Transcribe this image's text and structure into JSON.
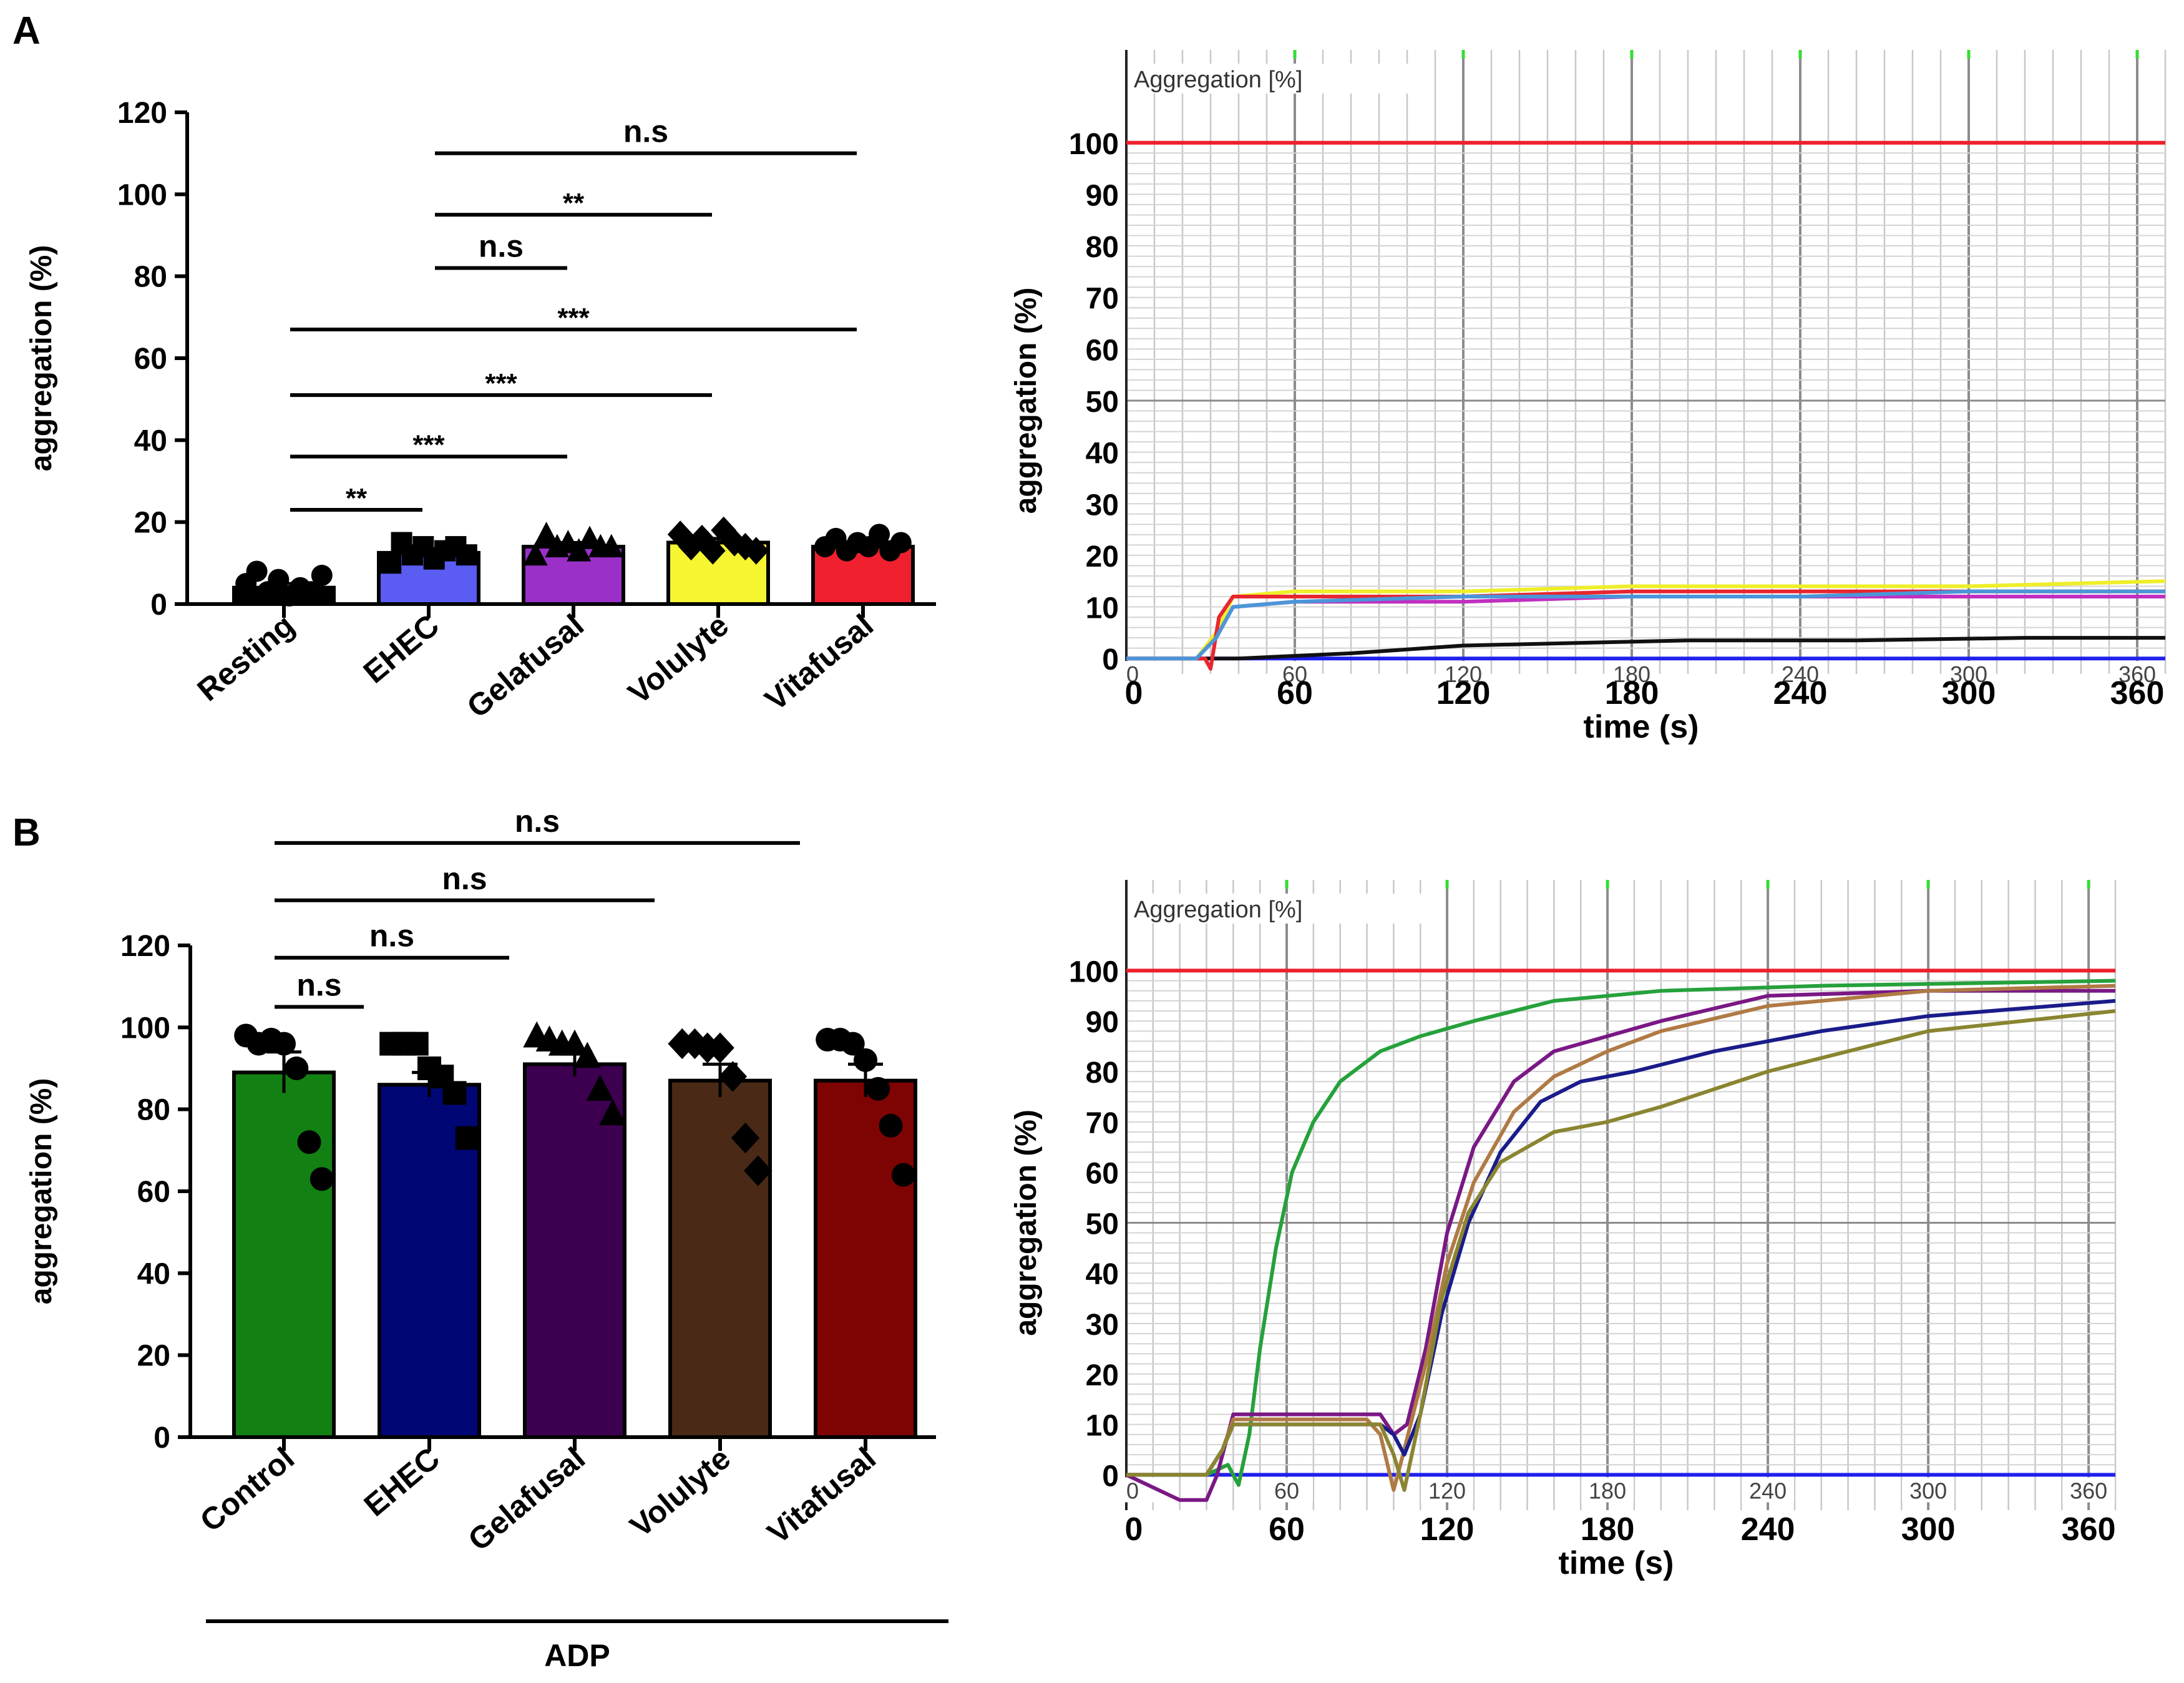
{
  "figure": {
    "panel_a_label": "A",
    "panel_b_label": "B",
    "adp_label": "ADP"
  },
  "colors": {
    "resting": "#000000",
    "ehec_a": "#5a5cf2",
    "gelafusal_a": "#9b30c8",
    "volulyte_a": "#f5f531",
    "vitafusal_a": "#f0202f",
    "control_b": "#138013",
    "ehec_b": "#010675",
    "gelafusal_b": "#3d0050",
    "volulyte_b": "#4a2a17",
    "vitafusal_b": "#7e0404",
    "trace_limit": "#ee1f2c",
    "trace_baseline": "#2020ee",
    "trace_grid_green": "#33dd33"
  },
  "chart_data": [
    {
      "id": "A-bar",
      "type": "bar",
      "ylabel": "aggregation (%)",
      "ylim": [
        0,
        120
      ],
      "yticks": [
        "0",
        "20",
        "40",
        "60",
        "80",
        "100",
        "120"
      ],
      "categories": [
        "Resting",
        "EHEC",
        "Gelafusal",
        "Volulyte",
        "Vitafusal"
      ],
      "values": [
        4,
        12.5,
        14,
        15,
        14
      ],
      "sem": [
        1,
        1,
        1,
        1,
        0.8
      ],
      "markers": [
        "circle",
        "square",
        "triangle",
        "diamond",
        "circle"
      ],
      "points": [
        [
          5,
          8,
          3,
          6,
          2,
          4,
          3,
          7
        ],
        [
          10,
          15,
          12,
          14,
          11,
          13,
          14,
          12
        ],
        [
          12,
          17,
          14,
          15,
          13,
          16,
          14,
          14
        ],
        [
          17,
          14,
          16,
          13,
          18,
          15,
          14,
          13
        ],
        [
          14,
          16,
          13,
          15,
          14,
          17,
          13,
          15
        ]
      ],
      "comparisons": [
        {
          "from": 1,
          "to": 4,
          "label": "n.s",
          "level": 110
        },
        {
          "from": 1,
          "to": 3,
          "label": "**",
          "level": 95
        },
        {
          "from": 1,
          "to": 2,
          "label": "n.s",
          "level": 82
        },
        {
          "from": 0,
          "to": 4,
          "label": "***",
          "level": 67
        },
        {
          "from": 0,
          "to": 3,
          "label": "***",
          "level": 51
        },
        {
          "from": 0,
          "to": 2,
          "label": "***",
          "level": 36
        },
        {
          "from": 0,
          "to": 1,
          "label": "**",
          "level": 23
        }
      ]
    },
    {
      "id": "A-trace",
      "type": "line",
      "inner_title": "Aggregation [%]",
      "ylabel": "aggregation (%)",
      "xlabel": "time (s)",
      "xlim": [
        0,
        370
      ],
      "ylim": [
        -3,
        118
      ],
      "yticks": [
        "0",
        "10",
        "20",
        "30",
        "40",
        "50",
        "60",
        "70",
        "80",
        "90",
        "100"
      ],
      "xticks": [
        "0",
        "60",
        "120",
        "180",
        "240",
        "300",
        "360"
      ],
      "inner_xticks": [
        "0",
        "60",
        "120",
        "180",
        "240",
        "300",
        "360"
      ],
      "series": [
        {
          "name": "limit",
          "color": "#ee1f2c",
          "x": [
            0,
            370
          ],
          "y": [
            100,
            100
          ]
        },
        {
          "name": "baseline",
          "color": "#2020ee",
          "x": [
            0,
            370
          ],
          "y": [
            0,
            0
          ]
        },
        {
          "name": "resting",
          "color": "#111111",
          "x": [
            0,
            40,
            80,
            120,
            160,
            200,
            260,
            320,
            370
          ],
          "y": [
            0,
            0,
            1,
            2.5,
            3,
            3.5,
            3.5,
            4,
            4
          ]
        },
        {
          "name": "volulyte",
          "color": "#eeee2a",
          "x": [
            0,
            25,
            32,
            38,
            60,
            120,
            180,
            240,
            300,
            370
          ],
          "y": [
            0,
            0,
            5,
            12,
            13,
            13,
            14,
            14,
            14,
            15
          ]
        },
        {
          "name": "vitafusal",
          "color": "#e8262f",
          "x": [
            0,
            28,
            30,
            33,
            38,
            60,
            120,
            180,
            240,
            300,
            370
          ],
          "y": [
            0,
            0,
            -2,
            8,
            12,
            12,
            12,
            13,
            13,
            13,
            13
          ]
        },
        {
          "name": "gelafusal",
          "color": "#c030c0",
          "x": [
            0,
            25,
            32,
            38,
            60,
            120,
            180,
            240,
            300,
            370
          ],
          "y": [
            0,
            0,
            4,
            10,
            11,
            11,
            12,
            12,
            12,
            12
          ]
        },
        {
          "name": "ehec",
          "color": "#4a96d8",
          "x": [
            0,
            25,
            32,
            38,
            60,
            120,
            180,
            240,
            300,
            370
          ],
          "y": [
            0,
            0,
            4,
            10,
            11,
            12,
            12,
            12,
            13,
            13
          ]
        }
      ]
    },
    {
      "id": "B-bar",
      "type": "bar",
      "ylabel": "aggregation (%)",
      "ylim": [
        0,
        120
      ],
      "yticks": [
        "0",
        "20",
        "40",
        "60",
        "80",
        "100",
        "120"
      ],
      "categories": [
        "Control",
        "EHEC",
        "Gelafusal",
        "Volulyte",
        "Vitafusal"
      ],
      "values": [
        89,
        86,
        91,
        87,
        87
      ],
      "sem": [
        5,
        3,
        3,
        4,
        4
      ],
      "markers": [
        "circle",
        "square",
        "triangle",
        "diamond",
        "circle"
      ],
      "points": [
        [
          98,
          96,
          97,
          96,
          90,
          72,
          63
        ],
        [
          96,
          96,
          96,
          90,
          88,
          84,
          73
        ],
        [
          98,
          97,
          96,
          96,
          93,
          85,
          79
        ],
        [
          96,
          96,
          95,
          95,
          88,
          73,
          65
        ],
        [
          97,
          97,
          96,
          92,
          85,
          76,
          64
        ]
      ],
      "comparisons": [
        {
          "from": 0,
          "to": 4,
          "label": "n.s",
          "level": 145
        },
        {
          "from": 0,
          "to": 3,
          "label": "n.s",
          "level": 131
        },
        {
          "from": 0,
          "to": 2,
          "label": "n.s",
          "level": 117
        },
        {
          "from": 0,
          "to": 1,
          "label": "n.s",
          "level": 105
        }
      ]
    },
    {
      "id": "B-trace",
      "type": "line",
      "inner_title": "Aggregation [%]",
      "ylabel": "aggregation (%)",
      "xlabel": "time (s)",
      "xlim": [
        0,
        370
      ],
      "ylim": [
        -7,
        118
      ],
      "yticks": [
        "0",
        "10",
        "20",
        "30",
        "40",
        "50",
        "60",
        "70",
        "80",
        "90",
        "100"
      ],
      "xticks": [
        "0",
        "60",
        "120",
        "180",
        "240",
        "300",
        "360"
      ],
      "inner_xticks": [
        "0",
        "60",
        "120",
        "180",
        "240",
        "300",
        "360"
      ],
      "series": [
        {
          "name": "limit",
          "color": "#ee1f2c",
          "x": [
            0,
            370
          ],
          "y": [
            100,
            100
          ]
        },
        {
          "name": "baseline",
          "color": "#2020ee",
          "x": [
            0,
            370
          ],
          "y": [
            0,
            0
          ]
        },
        {
          "name": "control",
          "color": "#26a13c",
          "x": [
            0,
            30,
            38,
            42,
            46,
            50,
            56,
            62,
            70,
            80,
            95,
            110,
            130,
            160,
            200,
            260,
            370
          ],
          "y": [
            0,
            0,
            2,
            -2,
            8,
            25,
            45,
            60,
            70,
            78,
            84,
            87,
            90,
            94,
            96,
            97,
            98
          ]
        },
        {
          "name": "gelafusal",
          "color": "#7a1885",
          "x": [
            0,
            20,
            30,
            34,
            40,
            60,
            95,
            100,
            105,
            112,
            120,
            130,
            145,
            160,
            180,
            200,
            240,
            300,
            370
          ],
          "y": [
            0,
            -5,
            -5,
            0,
            12,
            12,
            12,
            8,
            10,
            25,
            48,
            65,
            78,
            84,
            87,
            90,
            95,
            96,
            96
          ]
        },
        {
          "name": "volulyte",
          "color": "#b07a45",
          "x": [
            0,
            30,
            36,
            40,
            60,
            90,
            95,
            100,
            104,
            112,
            120,
            130,
            145,
            160,
            180,
            200,
            240,
            300,
            370
          ],
          "y": [
            0,
            0,
            5,
            11,
            11,
            11,
            8,
            -3,
            5,
            22,
            42,
            58,
            72,
            79,
            84,
            88,
            93,
            96,
            97
          ]
        },
        {
          "name": "ehec",
          "color": "#1a1c8a",
          "x": [
            0,
            30,
            36,
            40,
            60,
            95,
            100,
            104,
            110,
            118,
            128,
            140,
            155,
            170,
            190,
            220,
            260,
            300,
            370
          ],
          "y": [
            0,
            0,
            5,
            10,
            10,
            10,
            8,
            4,
            12,
            32,
            50,
            64,
            74,
            78,
            80,
            84,
            88,
            91,
            94
          ]
        },
        {
          "name": "vitafusal",
          "color": "#8a8530",
          "x": [
            0,
            30,
            36,
            40,
            60,
            95,
            100,
            104,
            110,
            118,
            128,
            140,
            160,
            180,
            200,
            240,
            300,
            370
          ],
          "y": [
            0,
            0,
            5,
            10,
            10,
            10,
            4,
            -3,
            12,
            35,
            52,
            62,
            68,
            70,
            73,
            80,
            88,
            92
          ]
        }
      ]
    }
  ]
}
